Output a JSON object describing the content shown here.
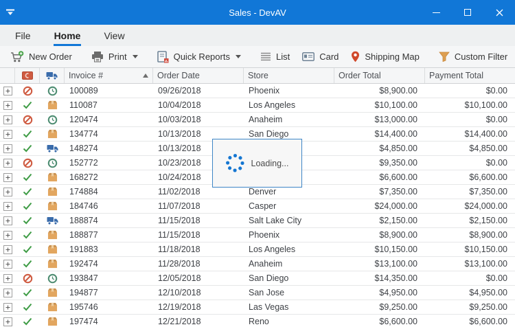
{
  "window": {
    "title": "Sales - DevAV"
  },
  "tabs": [
    {
      "label": "File",
      "active": false
    },
    {
      "label": "Home",
      "active": true
    },
    {
      "label": "View",
      "active": false
    }
  ],
  "toolbar": {
    "items": [
      {
        "label": "New Order",
        "icon": "cart-plus-icon",
        "dropdown": false
      },
      {
        "label": "Print",
        "icon": "printer-icon",
        "dropdown": true
      },
      {
        "label": "Quick Reports",
        "icon": "report-icon",
        "dropdown": true
      },
      {
        "label": "List",
        "icon": "list-icon",
        "dropdown": false
      },
      {
        "label": "Card",
        "icon": "card-icon",
        "dropdown": false
      },
      {
        "label": "Shipping Map",
        "icon": "map-pin-icon",
        "dropdown": false
      },
      {
        "label": "Custom Filter",
        "icon": "filter-icon",
        "dropdown": false
      }
    ]
  },
  "grid": {
    "columns": [
      {
        "key": "expand",
        "label": ""
      },
      {
        "key": "payment_status",
        "label": "",
        "icon": "wallet-icon"
      },
      {
        "key": "shipment_status",
        "label": "",
        "icon": "truck-icon"
      },
      {
        "key": "invoice",
        "label": "Invoice #",
        "sort": "asc"
      },
      {
        "key": "order_date",
        "label": "Order Date"
      },
      {
        "key": "store",
        "label": "Store"
      },
      {
        "key": "order_total",
        "label": "Order Total"
      },
      {
        "key": "payment_total",
        "label": "Payment Total"
      }
    ],
    "rows": [
      {
        "payment_status": "blocked",
        "shipment": "pending",
        "invoice": "100089",
        "order_date": "09/26/2018",
        "store": "Phoenix",
        "order_total": "$8,900.00",
        "payment_total": "$0.00"
      },
      {
        "payment_status": "paid",
        "shipment": "packed",
        "invoice": "110087",
        "order_date": "10/04/2018",
        "store": "Los Angeles",
        "order_total": "$10,100.00",
        "payment_total": "$10,100.00"
      },
      {
        "payment_status": "blocked",
        "shipment": "pending",
        "invoice": "120474",
        "order_date": "10/03/2018",
        "store": "Anaheim",
        "order_total": "$13,000.00",
        "payment_total": "$0.00"
      },
      {
        "payment_status": "paid",
        "shipment": "packed",
        "invoice": "134774",
        "order_date": "10/13/2018",
        "store": "San Diego",
        "order_total": "$14,400.00",
        "payment_total": "$14,400.00"
      },
      {
        "payment_status": "paid",
        "shipment": "transit",
        "invoice": "148274",
        "order_date": "10/13/2018",
        "store": "",
        "order_total": "$4,850.00",
        "payment_total": "$4,850.00"
      },
      {
        "payment_status": "blocked",
        "shipment": "pending",
        "invoice": "152772",
        "order_date": "10/23/2018",
        "store": "",
        "order_total": "$9,350.00",
        "payment_total": "$0.00"
      },
      {
        "payment_status": "paid",
        "shipment": "packed",
        "invoice": "168272",
        "order_date": "10/24/2018",
        "store": "",
        "order_total": "$6,600.00",
        "payment_total": "$6,600.00"
      },
      {
        "payment_status": "paid",
        "shipment": "packed",
        "invoice": "174884",
        "order_date": "11/02/2018",
        "store": "Denver",
        "order_total": "$7,350.00",
        "payment_total": "$7,350.00"
      },
      {
        "payment_status": "paid",
        "shipment": "packed",
        "invoice": "184746",
        "order_date": "11/07/2018",
        "store": "Casper",
        "order_total": "$24,000.00",
        "payment_total": "$24,000.00"
      },
      {
        "payment_status": "paid",
        "shipment": "transit",
        "invoice": "188874",
        "order_date": "11/15/2018",
        "store": "Salt Lake City",
        "order_total": "$2,150.00",
        "payment_total": "$2,150.00"
      },
      {
        "payment_status": "paid",
        "shipment": "packed",
        "invoice": "188877",
        "order_date": "11/15/2018",
        "store": "Phoenix",
        "order_total": "$8,900.00",
        "payment_total": "$8,900.00"
      },
      {
        "payment_status": "paid",
        "shipment": "packed",
        "invoice": "191883",
        "order_date": "11/18/2018",
        "store": "Los Angeles",
        "order_total": "$10,150.00",
        "payment_total": "$10,150.00"
      },
      {
        "payment_status": "paid",
        "shipment": "packed",
        "invoice": "192474",
        "order_date": "11/28/2018",
        "store": "Anaheim",
        "order_total": "$13,100.00",
        "payment_total": "$13,100.00"
      },
      {
        "payment_status": "blocked",
        "shipment": "pending",
        "invoice": "193847",
        "order_date": "12/05/2018",
        "store": "San Diego",
        "order_total": "$14,350.00",
        "payment_total": "$0.00"
      },
      {
        "payment_status": "paid",
        "shipment": "packed",
        "invoice": "194877",
        "order_date": "12/10/2018",
        "store": "San Jose",
        "order_total": "$4,950.00",
        "payment_total": "$4,950.00"
      },
      {
        "payment_status": "paid",
        "shipment": "packed",
        "invoice": "195746",
        "order_date": "12/19/2018",
        "store": "Las Vegas",
        "order_total": "$9,250.00",
        "payment_total": "$9,250.00"
      },
      {
        "payment_status": "paid",
        "shipment": "packed",
        "invoice": "197474",
        "order_date": "12/21/2018",
        "store": "Reno",
        "order_total": "$6,600.00",
        "payment_total": "$6,600.00"
      }
    ]
  },
  "loading": {
    "label": "Loading..."
  },
  "colors": {
    "titlebar": "#1177d7",
    "accent": "#1177d7",
    "blocked_icon": "#cf5b41",
    "check_icon": "#3f9c46",
    "clock_icon": "#4e8d72",
    "box_icon": "#e2a65f",
    "truck_icon": "#3a6cab",
    "pin_icon": "#d0482a",
    "filter_icon": "#dd9f52",
    "loading_border": "#3d85c6",
    "spinner_dot": "#1576d1"
  }
}
